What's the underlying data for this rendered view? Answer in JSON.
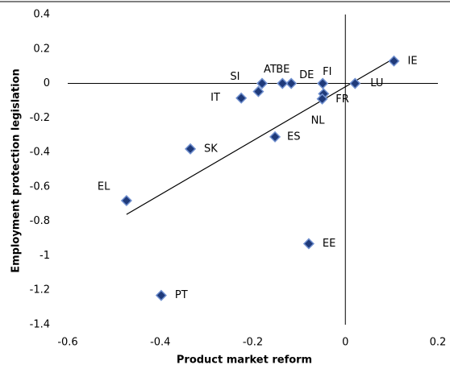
{
  "chart_data": {
    "type": "scatter",
    "x_label": "Product market reform",
    "y_label": "Employment protection legislation",
    "labels": [
      "IE",
      "LU",
      "FI",
      "DE",
      "BE",
      "AT",
      "SI",
      "IT",
      "FR",
      "NL",
      "ES",
      "SK",
      "EL",
      "EE",
      "PT"
    ],
    "x": [
      0.105,
      0.021,
      -0.049,
      -0.117,
      -0.136,
      -0.18,
      -0.188,
      -0.225,
      -0.047,
      -0.05,
      -0.152,
      -0.335,
      -0.473,
      -0.079,
      -0.398
    ],
    "y": [
      0.13,
      0,
      0,
      0,
      0,
      0,
      -0.047,
      -0.085,
      -0.06,
      -0.09,
      -0.31,
      -0.38,
      -0.68,
      -0.93,
      -1.23
    ],
    "color": "#1f3a7a",
    "trend_line": {
      "x": [
        -0.473,
        0.105
      ],
      "y": [
        -0.76,
        0.145
      ]
    },
    "xlim": [
      -0.6,
      0.2
    ],
    "ylim": [
      -1.4,
      0.4
    ],
    "xticks": [
      -0.6,
      -0.4,
      -0.2,
      0,
      0.2
    ],
    "yticks": [
      0.4,
      0.2,
      0,
      -0.2,
      -0.4,
      -0.6,
      -0.8,
      -1,
      -1.2,
      -1.4
    ]
  }
}
